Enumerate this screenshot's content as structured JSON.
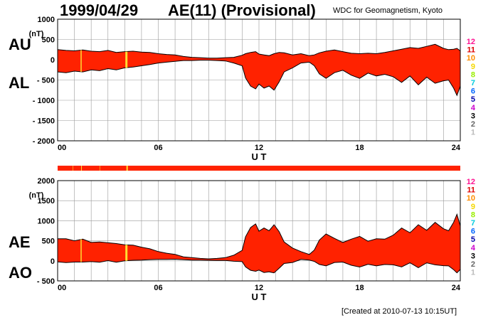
{
  "header": {
    "date": "1999/04/29",
    "title": "AE(11) (Provisional)",
    "source": "WDC for Geomagnetism, Kyoto"
  },
  "footer": {
    "created": "[Created at 2010-07-13 10:15UT]"
  },
  "colors": {
    "fill": "#ff2200",
    "outline": "#000000",
    "grid": "#999999",
    "highlight": "#ffdd33"
  },
  "station_legend": [
    {
      "label": "12",
      "color": "#ff1493"
    },
    {
      "label": "11",
      "color": "#dd0000"
    },
    {
      "label": "10",
      "color": "#ff8c00"
    },
    {
      "label": "9",
      "color": "#f5d800"
    },
    {
      "label": "8",
      "color": "#99ee00"
    },
    {
      "label": "7",
      "color": "#00ccdd"
    },
    {
      "label": "6",
      "color": "#0066ff"
    },
    {
      "label": "5",
      "color": "#0000aa"
    },
    {
      "label": "4",
      "color": "#cc00cc"
    },
    {
      "label": "3",
      "color": "#000000"
    },
    {
      "label": "2",
      "color": "#666666"
    },
    {
      "label": "1",
      "color": "#bbbbbb"
    }
  ],
  "chart_data": [
    {
      "type": "area",
      "panel": "AU/AL",
      "labels": {
        "upper": "AU",
        "lower": "AL"
      },
      "xlabel": "U T",
      "unit": "(nT)",
      "xlim": [
        0,
        24
      ],
      "ylim": [
        -2000,
        1000
      ],
      "x_ticks": [
        "00",
        "06",
        "12",
        "18",
        "24"
      ],
      "y_ticks": [
        "1000",
        "500",
        "0",
        "- 500",
        "- 1000",
        "- 1500",
        "- 2000"
      ],
      "x_hours": [
        0,
        0.5,
        1,
        1.5,
        2,
        2.5,
        3,
        3.5,
        4,
        4.5,
        5,
        5.5,
        6,
        6.5,
        7,
        7.5,
        8,
        8.5,
        9,
        9.5,
        10,
        10.5,
        11,
        11.2,
        11.5,
        11.8,
        12,
        12.3,
        12.6,
        12.9,
        13.2,
        13.5,
        14,
        14.5,
        15,
        15.3,
        15.6,
        16,
        16.5,
        17,
        17.5,
        18,
        18.5,
        19,
        19.5,
        20,
        20.5,
        21,
        21.5,
        22,
        22.5,
        23,
        23.3,
        23.6,
        23.8,
        24
      ],
      "series": [
        {
          "name": "AU",
          "values": [
            250,
            230,
            220,
            240,
            210,
            200,
            230,
            180,
            200,
            210,
            190,
            180,
            150,
            130,
            120,
            80,
            60,
            50,
            40,
            40,
            50,
            60,
            110,
            150,
            180,
            200,
            140,
            120,
            100,
            150,
            180,
            170,
            120,
            150,
            100,
            120,
            170,
            210,
            240,
            200,
            160,
            150,
            160,
            150,
            180,
            220,
            260,
            300,
            280,
            330,
            380,
            280,
            250,
            260,
            280,
            220
          ]
        },
        {
          "name": "AL",
          "values": [
            -300,
            -320,
            -280,
            -300,
            -250,
            -270,
            -220,
            -250,
            -200,
            -180,
            -150,
            -120,
            -80,
            -60,
            -40,
            -20,
            -20,
            -10,
            -10,
            -20,
            -30,
            -80,
            -150,
            -450,
            -650,
            -720,
            -600,
            -700,
            -650,
            -750,
            -550,
            -300,
            -200,
            -80,
            -60,
            -150,
            -350,
            -460,
            -320,
            -260,
            -380,
            -460,
            -330,
            -400,
            -360,
            -420,
            -560,
            -400,
            -620,
            -430,
            -580,
            -520,
            -500,
            -700,
            -880,
            -650
          ]
        }
      ]
    },
    {
      "type": "area",
      "panel": "AE/AO",
      "labels": {
        "upper": "AE",
        "lower": "AO"
      },
      "xlabel": "U T",
      "unit": "(nT)",
      "xlim": [
        0,
        24
      ],
      "ylim": [
        -500,
        2000
      ],
      "x_ticks": [
        "00",
        "06",
        "12",
        "18",
        "24"
      ],
      "y_ticks": [
        "2000",
        "1500",
        "1000",
        "500",
        "0",
        "- 500"
      ],
      "x_hours": [
        0,
        0.5,
        1,
        1.5,
        2,
        2.5,
        3,
        3.5,
        4,
        4.5,
        5,
        5.5,
        6,
        6.5,
        7,
        7.5,
        8,
        8.5,
        9,
        9.5,
        10,
        10.5,
        11,
        11.2,
        11.5,
        11.8,
        12,
        12.3,
        12.6,
        12.9,
        13.2,
        13.5,
        14,
        14.5,
        15,
        15.3,
        15.6,
        16,
        16.5,
        17,
        17.5,
        18,
        18.5,
        19,
        19.5,
        20,
        20.5,
        21,
        21.5,
        22,
        22.5,
        23,
        23.3,
        23.6,
        23.8,
        24
      ],
      "series": [
        {
          "name": "AE",
          "values": [
            550,
            550,
            500,
            540,
            460,
            470,
            450,
            430,
            400,
            390,
            340,
            300,
            230,
            190,
            160,
            100,
            80,
            60,
            50,
            60,
            80,
            140,
            260,
            600,
            830,
            920,
            740,
            820,
            750,
            900,
            730,
            470,
            320,
            230,
            160,
            270,
            520,
            670,
            560,
            460,
            540,
            610,
            490,
            550,
            540,
            640,
            820,
            700,
            900,
            760,
            960,
            800,
            750,
            960,
            1160,
            870
          ]
        },
        {
          "name": "AO",
          "values": [
            -25,
            -45,
            -30,
            -30,
            -20,
            -35,
            5,
            -35,
            0,
            15,
            20,
            30,
            35,
            35,
            40,
            30,
            20,
            20,
            15,
            10,
            10,
            -10,
            -20,
            -150,
            -235,
            -260,
            -230,
            -290,
            -275,
            -300,
            -185,
            -65,
            -40,
            35,
            20,
            -15,
            -90,
            -125,
            -40,
            -30,
            -110,
            -155,
            -85,
            -125,
            -90,
            -100,
            -150,
            -50,
            -170,
            -50,
            -100,
            -120,
            -125,
            -220,
            -300,
            -215
          ]
        }
      ]
    }
  ]
}
